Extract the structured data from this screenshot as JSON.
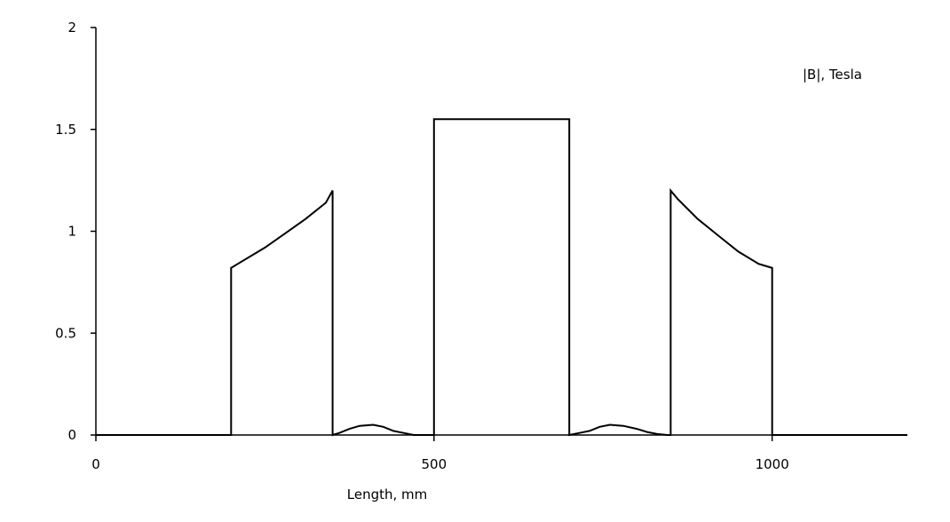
{
  "chart_data": {
    "type": "line",
    "title": "",
    "xlabel": "Length, mm",
    "ylabel": "",
    "xlim": [
      0,
      1200
    ],
    "ylim": [
      0,
      2
    ],
    "xticks": [
      0,
      500,
      1000
    ],
    "xtick_labels": [
      "0",
      "500",
      "1000"
    ],
    "yticks": [
      0,
      0.5,
      1,
      1.5,
      2
    ],
    "ytick_labels": [
      "0",
      "0.5",
      "1",
      "1.5",
      "2"
    ],
    "annotation": "|B|, Tesla",
    "grid": false,
    "series": [
      {
        "x": [
          0,
          200,
          200,
          205,
          210,
          230,
          250,
          280,
          310,
          340,
          350,
          350,
          350,
          360,
          375,
          390,
          410,
          425,
          440,
          455,
          470,
          500,
          500,
          700,
          700,
          700,
          715,
          730,
          745,
          760,
          780,
          800,
          815,
          830,
          845,
          850,
          850,
          860,
          890,
          920,
          950,
          980,
          990,
          1000,
          1000,
          1200
        ],
        "y": [
          0,
          0,
          0.82,
          0.83,
          0.84,
          0.88,
          0.92,
          0.99,
          1.06,
          1.14,
          1.2,
          1.2,
          0,
          0.01,
          0.03,
          0.045,
          0.05,
          0.04,
          0.02,
          0.01,
          0,
          0,
          1.55,
          1.55,
          0,
          0,
          0.01,
          0.02,
          0.04,
          0.05,
          0.045,
          0.03,
          0.015,
          0.005,
          0,
          0,
          1.2,
          1.16,
          1.06,
          0.98,
          0.9,
          0.84,
          0.83,
          0.82,
          0,
          0
        ]
      }
    ]
  }
}
